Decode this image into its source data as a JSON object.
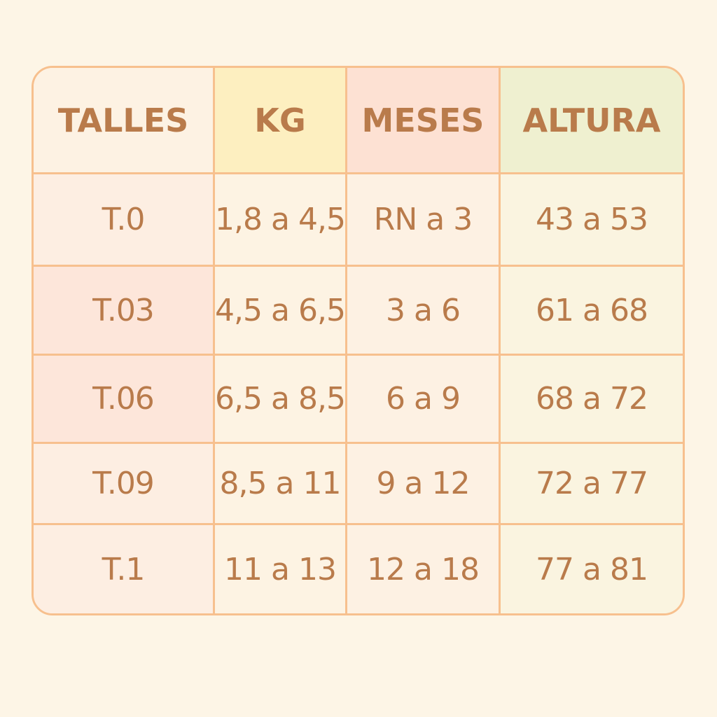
{
  "table": {
    "headers": [
      "TALLES",
      "KG",
      "MESES",
      "ALTURA"
    ],
    "rows": [
      [
        "T.0",
        "1,8 a 4,5",
        "RN a 3",
        "43 a 53"
      ],
      [
        "T.03",
        "4,5 a 6,5",
        "3 a 6",
        "61 a 68"
      ],
      [
        "T.06",
        "6,5 a 8,5",
        "6 a 9",
        "68 a 72"
      ],
      [
        "T.09",
        "8,5 a 11",
        "9 a 12",
        "72 a 77"
      ],
      [
        "T.1",
        "11 a 13",
        "12 a 18",
        "77 a 81"
      ]
    ]
  },
  "colors": {
    "background": "#fdf5e6",
    "border": "#f7c08e",
    "text": "#b97b4b",
    "kg_header": "#fdefc0",
    "meses_header": "#fde1d3",
    "altura_header": "#eff0d0"
  }
}
